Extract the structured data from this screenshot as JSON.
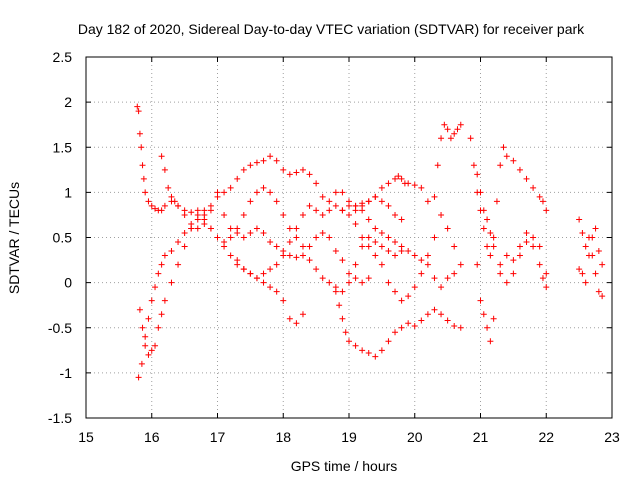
{
  "chart_data": {
    "type": "scatter",
    "title": "Day 182 of 2020, Sidereal Day-to-day VTEC variation (SDTVAR) for receiver park",
    "xlabel": "GPS time / hours",
    "ylabel": "SDTVAR / TECUs",
    "xlim": [
      15,
      23
    ],
    "ylim": [
      -1.5,
      2.5
    ],
    "xticks": [
      "15",
      "16",
      "17",
      "18",
      "19",
      "20",
      "21",
      "22",
      "23"
    ],
    "yticks": [
      "-1.5",
      "-1",
      "-0.5",
      "0",
      "0.5",
      "1",
      "1.5",
      "2",
      "2.5"
    ],
    "grid": true,
    "marker": "+",
    "color": "#ff0000",
    "series": [
      {
        "name": "s1",
        "x": [
          15.78,
          15.8,
          15.82,
          15.84,
          15.86,
          15.88,
          15.9,
          15.95,
          16.0,
          16.05,
          16.1,
          16.15,
          16.2,
          16.3,
          16.4,
          16.5,
          16.6,
          16.7,
          16.8,
          16.9,
          17.0,
          17.1,
          17.2,
          17.3,
          17.4,
          17.5,
          17.6,
          17.7,
          17.8,
          17.9,
          18.0,
          18.1,
          18.2,
          18.3,
          18.4,
          18.5,
          18.6,
          18.7,
          18.8,
          18.9,
          19.0,
          19.1,
          19.2,
          19.3,
          19.4,
          19.5,
          19.6,
          19.7,
          19.8
        ],
        "y": [
          1.95,
          1.9,
          1.65,
          1.5,
          1.3,
          1.15,
          1.0,
          0.9,
          0.85,
          0.82,
          0.8,
          0.8,
          0.85,
          0.9,
          0.85,
          0.75,
          0.65,
          0.6,
          0.65,
          0.8,
          1.0,
          1.0,
          1.05,
          1.15,
          1.25,
          1.3,
          1.33,
          1.35,
          1.4,
          1.35,
          1.25,
          1.2,
          1.22,
          1.25,
          1.2,
          1.1,
          0.95,
          0.9,
          1.0,
          1.0,
          0.9,
          0.8,
          0.88,
          0.9,
          0.95,
          0.9,
          0.85,
          0.75,
          0.7
        ]
      },
      {
        "name": "s2",
        "x": [
          15.8,
          15.85,
          15.9,
          15.95,
          16.0,
          16.05,
          16.1,
          16.15,
          16.2,
          16.3,
          16.4,
          16.5,
          16.6,
          16.7,
          16.8,
          16.9,
          17.0,
          17.1,
          17.2,
          17.3,
          17.4,
          17.5,
          17.6,
          17.7,
          17.8,
          17.9,
          18.0,
          18.1,
          18.2,
          18.3,
          18.4,
          18.5,
          18.6,
          18.7,
          18.8,
          18.9,
          19.0,
          19.1,
          19.2,
          19.3
        ],
        "y": [
          -1.05,
          -0.9,
          -0.6,
          -0.4,
          -0.2,
          -0.05,
          0.1,
          0.2,
          0.3,
          0.35,
          0.45,
          0.55,
          0.6,
          0.7,
          0.8,
          0.85,
          0.95,
          0.75,
          0.6,
          0.55,
          0.5,
          0.55,
          0.6,
          0.55,
          0.45,
          0.4,
          0.35,
          0.3,
          0.28,
          0.3,
          0.4,
          0.5,
          0.55,
          0.5,
          0.35,
          0.25,
          0.1,
          0.05,
          0.0,
          0.05
        ]
      },
      {
        "name": "s3",
        "x": [
          15.82,
          15.86,
          15.9,
          15.95,
          16.0,
          16.05,
          16.1,
          16.15,
          16.2,
          16.3,
          16.4,
          16.5,
          16.6,
          16.7,
          16.8,
          16.9,
          17.0,
          17.1,
          17.2,
          17.3,
          17.4,
          17.5,
          17.6,
          17.7,
          17.8,
          17.9,
          18.0,
          18.1,
          18.2,
          18.3
        ],
        "y": [
          -0.3,
          -0.5,
          -0.7,
          -0.8,
          -0.75,
          -0.7,
          -0.5,
          -0.35,
          -0.2,
          0.0,
          0.2,
          0.4,
          0.6,
          0.8,
          0.75,
          0.6,
          0.5,
          0.4,
          0.3,
          0.25,
          0.15,
          0.1,
          0.05,
          0.0,
          -0.05,
          -0.1,
          -0.2,
          -0.4,
          -0.45,
          -0.35
        ]
      },
      {
        "name": "s4",
        "x": [
          16.15,
          16.2,
          16.25,
          16.3,
          16.35,
          16.4,
          16.5,
          16.6,
          16.7,
          16.8,
          16.9,
          17.0,
          17.1,
          17.2,
          17.3,
          17.4,
          17.5,
          17.6,
          17.7,
          17.8,
          17.9,
          18.0,
          18.1,
          18.2,
          18.3,
          18.4,
          18.5,
          18.6,
          18.7,
          18.8,
          18.9,
          19.0,
          19.1,
          19.2,
          19.3,
          19.4,
          19.5,
          19.6,
          19.7,
          19.8
        ],
        "y": [
          1.4,
          1.25,
          1.05,
          0.95,
          0.9,
          0.85,
          0.8,
          0.78,
          0.75,
          0.7,
          0.6,
          0.5,
          0.45,
          0.5,
          0.6,
          0.75,
          0.9,
          1.0,
          1.05,
          1.0,
          0.9,
          0.75,
          0.6,
          0.5,
          0.4,
          0.25,
          0.15,
          0.05,
          0.0,
          -0.05,
          -0.1,
          0.0,
          0.2,
          0.4,
          0.5,
          0.45,
          0.4,
          0.35,
          0.3,
          0.35
        ]
      },
      {
        "name": "s5",
        "x": [
          18.8,
          18.85,
          18.9,
          18.95,
          19.0,
          19.1,
          19.2,
          19.3,
          19.4,
          19.5,
          19.6,
          19.7,
          19.8,
          19.9,
          20.0,
          20.1,
          20.2,
          20.3,
          20.4,
          20.5,
          20.6,
          20.7
        ],
        "y": [
          -0.1,
          -0.25,
          -0.4,
          -0.55,
          -0.65,
          -0.7,
          -0.75,
          -0.78,
          -0.82,
          -0.75,
          -0.65,
          -0.55,
          -0.5,
          -0.45,
          -0.48,
          -0.42,
          -0.35,
          -0.3,
          -0.35,
          -0.42,
          -0.48,
          -0.5
        ]
      },
      {
        "name": "s6",
        "x": [
          17.3,
          17.4,
          17.5,
          17.6,
          17.7,
          17.8,
          17.9,
          18.0,
          18.1,
          18.2,
          18.3,
          18.4,
          18.5,
          18.6,
          18.7,
          18.8,
          18.9,
          19.0,
          19.1,
          19.2,
          19.3,
          19.4,
          19.5,
          19.6,
          19.7,
          19.8,
          19.9,
          20.0,
          20.1,
          20.2,
          20.3,
          20.4,
          20.5,
          20.6,
          20.7
        ],
        "y": [
          0.2,
          0.15,
          0.1,
          0.05,
          0.1,
          0.15,
          0.2,
          0.3,
          0.45,
          0.6,
          0.75,
          0.85,
          0.8,
          0.75,
          0.8,
          0.85,
          0.8,
          0.75,
          0.65,
          0.5,
          0.4,
          0.3,
          0.2,
          0.0,
          -0.1,
          -0.2,
          -0.15,
          -0.05,
          0.1,
          0.3,
          0.5,
          0.75,
          0.6,
          0.4,
          0.2
        ]
      },
      {
        "name": "s7",
        "x": [
          19.1,
          19.2,
          19.3,
          19.4,
          19.5,
          19.6,
          19.7,
          19.75,
          19.8,
          19.85,
          19.9,
          20.0,
          20.1,
          20.2,
          20.3,
          20.35,
          20.4,
          20.45,
          20.5,
          20.55,
          20.6,
          20.65,
          20.7
        ],
        "y": [
          0.85,
          0.85,
          0.9,
          0.95,
          1.05,
          1.1,
          1.15,
          1.18,
          1.15,
          1.1,
          1.1,
          1.08,
          1.05,
          0.9,
          0.95,
          1.3,
          1.6,
          1.75,
          1.7,
          1.6,
          1.65,
          1.7,
          1.75
        ]
      },
      {
        "name": "s8",
        "x": [
          18.9,
          19.0,
          19.1,
          19.2,
          19.3,
          19.4,
          19.5,
          19.6,
          19.7,
          19.8,
          19.9,
          20.0,
          20.1,
          20.2,
          20.3,
          20.4,
          20.5,
          20.6
        ],
        "y": [
          0.8,
          0.85,
          0.85,
          0.8,
          0.7,
          0.6,
          0.55,
          0.5,
          0.45,
          0.4,
          0.35,
          0.3,
          0.25,
          0.2,
          0.05,
          -0.05,
          0.05,
          0.1
        ]
      },
      {
        "name": "s9",
        "x": [
          20.85,
          20.9,
          20.95,
          21.0,
          21.05,
          21.1,
          21.15,
          21.2,
          21.25,
          21.3,
          21.35,
          21.4,
          21.5,
          21.6,
          21.7,
          21.8,
          21.9,
          21.95,
          22.0
        ],
        "y": [
          1.6,
          1.3,
          1.0,
          0.8,
          0.6,
          0.4,
          0.3,
          0.5,
          0.9,
          1.3,
          1.5,
          1.4,
          1.35,
          1.25,
          1.15,
          1.05,
          0.95,
          0.9,
          0.8
        ]
      },
      {
        "name": "s10",
        "x": [
          20.95,
          21.0,
          21.05,
          21.1,
          21.15,
          21.2,
          21.3,
          21.4,
          21.5,
          21.6,
          21.7,
          21.8,
          21.9,
          21.95,
          22.0
        ],
        "y": [
          0.2,
          -0.2,
          -0.35,
          -0.5,
          -0.65,
          -0.4,
          0.1,
          0.3,
          0.25,
          0.4,
          0.55,
          0.4,
          0.2,
          0.05,
          0.1
        ]
      },
      {
        "name": "s11",
        "x": [
          20.95,
          21.0,
          21.05,
          21.1,
          21.15,
          21.2,
          21.3,
          21.4,
          21.5,
          21.6,
          21.7,
          21.8,
          21.9,
          22.0
        ],
        "y": [
          1.2,
          1.0,
          0.8,
          0.7,
          0.55,
          0.4,
          0.2,
          0.0,
          0.1,
          0.3,
          0.45,
          0.5,
          0.4,
          -0.05
        ]
      },
      {
        "name": "s12",
        "x": [
          22.5,
          22.55,
          22.6,
          22.65,
          22.7,
          22.75,
          22.8,
          22.85,
          22.5,
          22.55,
          22.6,
          22.65,
          22.7,
          22.75,
          22.8,
          22.85
        ],
        "y": [
          0.7,
          0.55,
          0.4,
          0.3,
          0.5,
          0.6,
          0.35,
          0.2,
          0.15,
          0.1,
          0.0,
          0.5,
          0.3,
          0.1,
          -0.1,
          -0.15
        ]
      }
    ]
  }
}
